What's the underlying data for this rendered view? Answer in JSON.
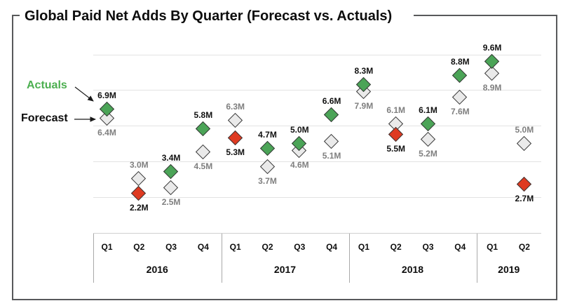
{
  "title": "Global Paid Net Adds By Quarter (Forecast vs. Actuals)",
  "legend": {
    "actuals": "Actuals",
    "forecast": "Forecast"
  },
  "colors": {
    "actual_beat": "#4ba457",
    "actual_miss": "#df3a21",
    "forecast_fill": "#eaeaea",
    "marker_border": "#383838",
    "actual_label_text": "#111111",
    "forecast_label_text": "#7f7f7f",
    "legend_green": "#4caf50",
    "gridline": "#e3e3e3",
    "axis_line": "#cfcfcf",
    "frame_border": "#58595b"
  },
  "chart_data": {
    "type": "scatter",
    "title": "Global Paid Net Adds By Quarter (Forecast vs. Actuals)",
    "unit": "M",
    "ylim": [
      0,
      12
    ],
    "gridline_values": [
      2,
      4,
      6,
      8,
      10
    ],
    "grid": "horizontal-only, unlabeled value axis",
    "legend_position": "left, arrows pointing to first markers",
    "x_axis": {
      "years": [
        {
          "label": "2016",
          "quarters": [
            "Q1",
            "Q2",
            "Q3",
            "Q4"
          ]
        },
        {
          "label": "2017",
          "quarters": [
            "Q1",
            "Q2",
            "Q3",
            "Q4"
          ]
        },
        {
          "label": "2018",
          "quarters": [
            "Q1",
            "Q2",
            "Q3",
            "Q4"
          ]
        },
        {
          "label": "2019",
          "quarters": [
            "Q1",
            "Q2"
          ]
        }
      ]
    },
    "series_names": [
      "Forecast",
      "Actuals"
    ],
    "points": [
      {
        "year": "2016",
        "quarter": "Q1",
        "forecast": 6.4,
        "actual": 6.9,
        "forecast_label": "6.4M",
        "actual_label": "6.9M",
        "outcome": "beat"
      },
      {
        "year": "2016",
        "quarter": "Q2",
        "forecast": 3.0,
        "actual": 2.2,
        "forecast_label": "3.0M",
        "actual_label": "2.2M",
        "outcome": "miss"
      },
      {
        "year": "2016",
        "quarter": "Q3",
        "forecast": 2.5,
        "actual": 3.4,
        "forecast_label": "2.5M",
        "actual_label": "3.4M",
        "outcome": "beat"
      },
      {
        "year": "2016",
        "quarter": "Q4",
        "forecast": 4.5,
        "actual": 5.8,
        "forecast_label": "4.5M",
        "actual_label": "5.8M",
        "outcome": "beat"
      },
      {
        "year": "2017",
        "quarter": "Q1",
        "forecast": 6.3,
        "actual": 5.3,
        "forecast_label": "6.3M",
        "actual_label": "5.3M",
        "outcome": "miss"
      },
      {
        "year": "2017",
        "quarter": "Q2",
        "forecast": 3.7,
        "actual": 4.7,
        "forecast_label": "3.7M",
        "actual_label": "4.7M",
        "outcome": "beat"
      },
      {
        "year": "2017",
        "quarter": "Q3",
        "forecast": 4.6,
        "actual": 5.0,
        "forecast_label": "4.6M",
        "actual_label": "5.0M",
        "outcome": "beat"
      },
      {
        "year": "2017",
        "quarter": "Q4",
        "forecast": 5.1,
        "actual": 6.6,
        "forecast_label": "5.1M",
        "actual_label": "6.6M",
        "outcome": "beat"
      },
      {
        "year": "2018",
        "quarter": "Q1",
        "forecast": 7.9,
        "actual": 8.3,
        "forecast_label": "7.9M",
        "actual_label": "8.3M",
        "outcome": "beat"
      },
      {
        "year": "2018",
        "quarter": "Q2",
        "forecast": 6.1,
        "actual": 5.5,
        "forecast_label": "6.1M",
        "actual_label": "5.5M",
        "outcome": "miss"
      },
      {
        "year": "2018",
        "quarter": "Q3",
        "forecast": 5.2,
        "actual": 6.1,
        "forecast_label": "5.2M",
        "actual_label": "6.1M",
        "outcome": "beat"
      },
      {
        "year": "2018",
        "quarter": "Q4",
        "forecast": 7.6,
        "actual": 8.8,
        "forecast_label": "7.6M",
        "actual_label": "8.8M",
        "outcome": "beat"
      },
      {
        "year": "2019",
        "quarter": "Q1",
        "forecast": 8.9,
        "actual": 9.6,
        "forecast_label": "8.9M",
        "actual_label": "9.6M",
        "outcome": "beat"
      },
      {
        "year": "2019",
        "quarter": "Q2",
        "forecast": 5.0,
        "actual": 2.7,
        "forecast_label": "5.0M",
        "actual_label": "2.7M",
        "outcome": "miss"
      }
    ]
  }
}
